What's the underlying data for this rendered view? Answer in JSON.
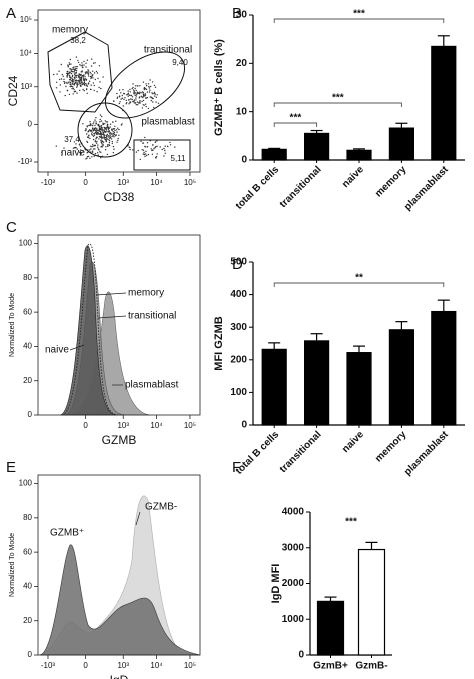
{
  "chart_data": [
    {
      "type": "flow",
      "panel": "A",
      "xlabel": "CD38",
      "ylabel": "CD24",
      "xscale": "biexponential",
      "yscale": "biexponential",
      "xlim": [
        -2000,
        200000
      ],
      "ylim": [
        -2000,
        200000
      ],
      "xticks": [
        {
          "value": -1000,
          "label": "-10³"
        },
        0,
        {
          "value": 1000,
          "label": "10³"
        },
        {
          "value": 10000,
          "label": "10⁴"
        },
        {
          "value": 100000,
          "label": "10⁵"
        }
      ],
      "yticks": [
        {
          "value": -1000,
          "label": "-10³"
        },
        0,
        {
          "value": 1000,
          "label": "10³"
        },
        {
          "value": 10000,
          "label": "10⁴"
        },
        {
          "value": 100000,
          "label": "10⁵"
        }
      ],
      "gates": [
        "memory",
        "transitional",
        "naive",
        "plasmablast"
      ],
      "values": [
        38.2,
        9.4,
        37.4,
        5.11
      ],
      "value_labels": [
        "38,2",
        "9,40",
        "37,4",
        "5,11"
      ]
    },
    {
      "type": "bar",
      "panel": "B",
      "ylabel": "GZMB⁺ B cells (%)",
      "categories": [
        "total B cells",
        "transitional",
        "naive",
        "memory",
        "plasmablast"
      ],
      "values": [
        2.2,
        5.5,
        2.0,
        6.6,
        23.5
      ],
      "errors": [
        0.2,
        0.6,
        0.3,
        1.0,
        2.2
      ],
      "color": "#000000",
      "ylim": [
        0,
        30
      ],
      "yticks": [
        0,
        10,
        20,
        30
      ],
      "annotations": [
        {
          "text": "***",
          "from": "total B cells",
          "to": "plasmablast"
        },
        {
          "text": "***",
          "from": "total B cells",
          "to": "memory"
        },
        {
          "text": "***",
          "from": "total B cells",
          "to": "transitional"
        }
      ]
    },
    {
      "type": "flow",
      "panel": "C",
      "xlabel": "GZMB",
      "ylabel": "Normalized To Mode",
      "xscale": "biexponential",
      "yscale": "linear",
      "xlim": [
        -2000,
        200000
      ],
      "ylim": [
        0,
        105
      ],
      "xticks": [
        0,
        {
          "value": 1000,
          "label": "10³"
        },
        {
          "value": 10000,
          "label": "10⁴"
        },
        {
          "value": 100000,
          "label": "10⁵"
        }
      ],
      "yticks": [
        0,
        20,
        40,
        60,
        80,
        100
      ],
      "labels": [
        "memory",
        "transitional",
        "naive",
        "plasmablast"
      ]
    },
    {
      "type": "bar",
      "panel": "D",
      "ylabel": "MFI GZMB",
      "categories": [
        "total B cells",
        "transitional",
        "naive",
        "memory",
        "plasmablast"
      ],
      "values": [
        232,
        258,
        222,
        292,
        348
      ],
      "errors": [
        20,
        22,
        20,
        25,
        35
      ],
      "color": "#000000",
      "ylim": [
        0,
        500
      ],
      "yticks": [
        0,
        100,
        200,
        300,
        400,
        500
      ],
      "annotations": [
        {
          "text": "**",
          "from": "total B cells",
          "to": "plasmablast"
        }
      ]
    },
    {
      "type": "flow",
      "panel": "E",
      "xlabel": "IgD",
      "ylabel": "Normalized To Mode",
      "xscale": "biexponential",
      "yscale": "linear",
      "xlim": [
        -2000,
        200000
      ],
      "ylim": [
        0,
        105
      ],
      "xticks": [
        {
          "value": -1000,
          "label": "-10³"
        },
        0,
        {
          "value": 1000,
          "label": "10³"
        },
        {
          "value": 10000,
          "label": "10⁴"
        },
        {
          "value": 100000,
          "label": "10⁵"
        }
      ],
      "yticks": [
        0,
        20,
        40,
        60,
        80,
        100
      ],
      "labels": [
        "GZMB⁺",
        "GZMB-"
      ]
    },
    {
      "type": "bar",
      "panel": "F",
      "ylabel": "IgD MFI",
      "categories": [
        "GzmB+",
        "GzmB-"
      ],
      "values": [
        1500,
        2950
      ],
      "errors": [
        120,
        200
      ],
      "colors": [
        "#000000",
        "#ffffff"
      ],
      "ylim": [
        0,
        4000
      ],
      "yticks": [
        0,
        1000,
        2000,
        3000,
        4000
      ],
      "annotations": [
        {
          "text": "***"
        }
      ]
    }
  ]
}
